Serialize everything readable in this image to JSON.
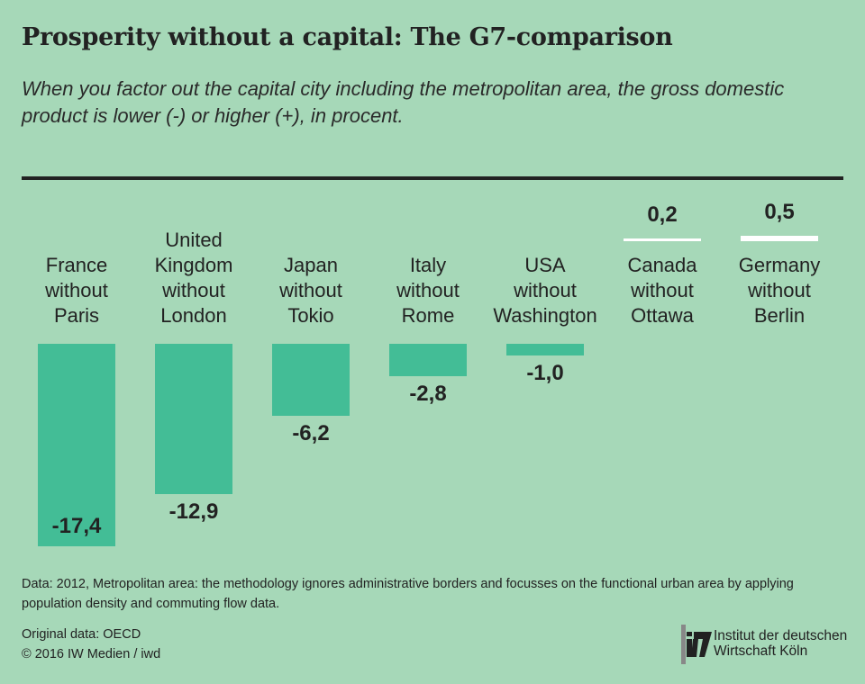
{
  "chart_data": {
    "type": "bar",
    "title": "Prosperity without a capital: The G7-comparison",
    "subtitle": "When you factor out the capital city including the metropolitan area, the gross domestic product is lower (-) or higher (+), in procent.",
    "categories": [
      [
        "France",
        "without",
        "Paris"
      ],
      [
        "United",
        "Kingdom",
        "without",
        "London"
      ],
      [
        "Japan",
        "without",
        "Tokio"
      ],
      [
        "Italy",
        "without",
        "Rome"
      ],
      [
        "USA",
        "without",
        "Washington"
      ],
      [
        "Canada",
        "without",
        "Ottawa"
      ],
      [
        "Germany",
        "without",
        "Berlin"
      ]
    ],
    "values": [
      -17.4,
      -12.9,
      -6.2,
      -2.8,
      -1.0,
      0.2,
      0.5
    ],
    "value_labels": [
      "-17,4",
      "-12,9",
      "-6,2",
      "-2,8",
      "-1,0",
      "0,2",
      "0,5"
    ],
    "colors": {
      "negative": "#43bd96",
      "positive": "#ffffff",
      "background": "#a6d8b8"
    }
  },
  "footer": {
    "note": "Data: 2012, Metropolitan area: the methodology ignores administrative borders and focusses on the functional urban area by applying population density and commuting flow data.",
    "source_line1": "Original data: OECD",
    "source_line2": "© 2016 IW Medien / iwd"
  },
  "logo": {
    "line1": "Institut der deutschen",
    "line2": "Wirtschaft Köln",
    "mark": "iw"
  }
}
